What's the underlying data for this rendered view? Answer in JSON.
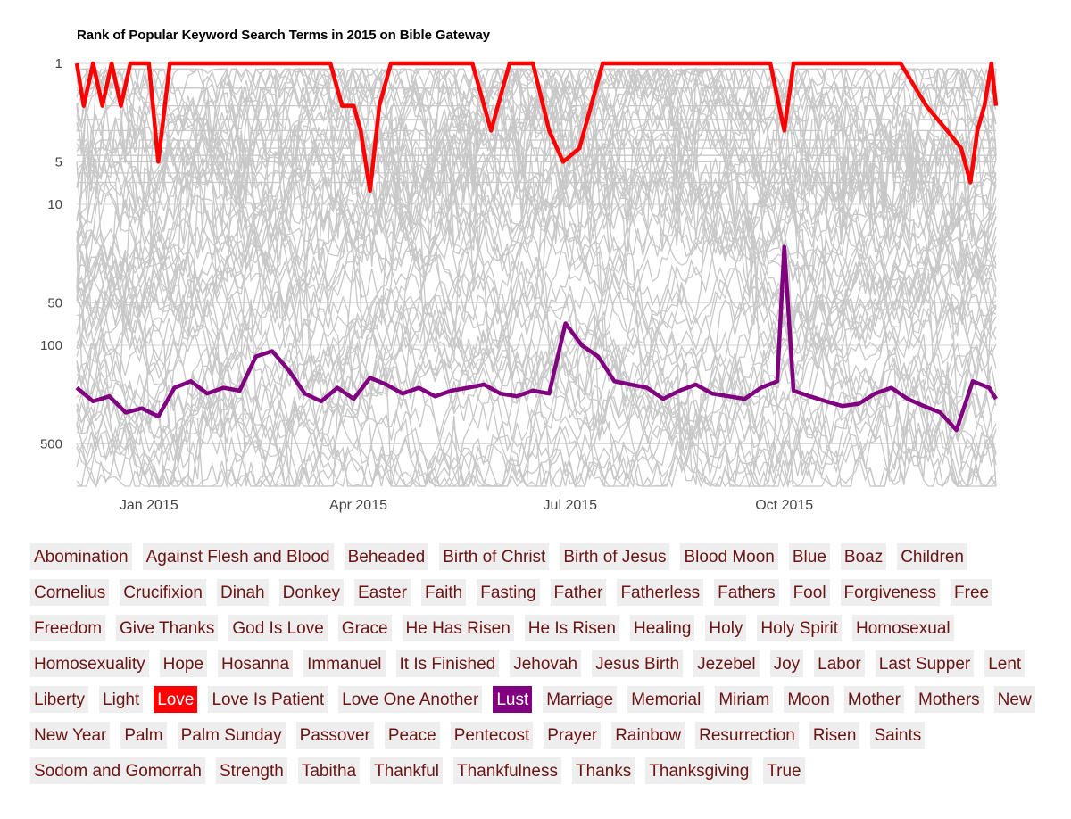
{
  "chart_data": {
    "type": "line",
    "title": "Rank of Popular Keyword Search Terms in 2015 on Bible Gateway",
    "y_scale": "log",
    "y_reversed": true,
    "y_ticks": [
      1,
      5,
      10,
      50,
      100,
      500
    ],
    "ylim": [
      1,
      1000
    ],
    "x_ticks": [
      "Jan 2015",
      "Apr 2015",
      "Jul 2015",
      "Oct 2015"
    ],
    "xlim": [
      "2014-12-01",
      "2015-12-31"
    ],
    "grid": true,
    "background_series_color": "#cccccc",
    "series": [
      {
        "name": "Love",
        "color": "#ff0000",
        "x": [
          "2014-12-01",
          "2014-12-04",
          "2014-12-08",
          "2014-12-12",
          "2014-12-16",
          "2014-12-20",
          "2014-12-24",
          "2014-12-28",
          "2015-01-01",
          "2015-01-05",
          "2015-01-10",
          "2015-02-01",
          "2015-03-01",
          "2015-03-20",
          "2015-03-25",
          "2015-03-30",
          "2015-04-02",
          "2015-04-06",
          "2015-04-10",
          "2015-04-15",
          "2015-05-01",
          "2015-05-20",
          "2015-05-28",
          "2015-06-05",
          "2015-06-15",
          "2015-06-22",
          "2015-06-28",
          "2015-07-05",
          "2015-07-15",
          "2015-08-01",
          "2015-09-01",
          "2015-09-25",
          "2015-10-01",
          "2015-10-05",
          "2015-10-10",
          "2015-11-01",
          "2015-11-20",
          "2015-12-01",
          "2015-12-10",
          "2015-12-16",
          "2015-12-20",
          "2015-12-23",
          "2015-12-26",
          "2015-12-29",
          "2015-12-31"
        ],
        "y": [
          1,
          2,
          1,
          2,
          1,
          2,
          1,
          1,
          1,
          5,
          1,
          1,
          1,
          1,
          2,
          2,
          3,
          8,
          2,
          1,
          1,
          1,
          3,
          1,
          1,
          3,
          5,
          4,
          1,
          1,
          1,
          1,
          3,
          1,
          1,
          1,
          1,
          2,
          3,
          4,
          7,
          3,
          2,
          1,
          2
        ]
      },
      {
        "name": "Lust",
        "color": "#800080",
        "x": [
          "2014-12-01",
          "2014-12-08",
          "2014-12-15",
          "2014-12-22",
          "2014-12-29",
          "2015-01-05",
          "2015-01-12",
          "2015-01-19",
          "2015-01-26",
          "2015-02-02",
          "2015-02-09",
          "2015-02-16",
          "2015-02-23",
          "2015-03-02",
          "2015-03-09",
          "2015-03-16",
          "2015-03-23",
          "2015-03-30",
          "2015-04-06",
          "2015-04-13",
          "2015-04-20",
          "2015-04-27",
          "2015-05-04",
          "2015-05-11",
          "2015-05-18",
          "2015-05-25",
          "2015-06-01",
          "2015-06-08",
          "2015-06-15",
          "2015-06-22",
          "2015-06-29",
          "2015-07-06",
          "2015-07-13",
          "2015-07-20",
          "2015-07-27",
          "2015-08-03",
          "2015-08-10",
          "2015-08-17",
          "2015-08-24",
          "2015-08-31",
          "2015-09-07",
          "2015-09-14",
          "2015-09-21",
          "2015-09-28",
          "2015-10-01",
          "2015-10-05",
          "2015-10-12",
          "2015-10-19",
          "2015-10-26",
          "2015-11-02",
          "2015-11-09",
          "2015-11-16",
          "2015-11-23",
          "2015-11-30",
          "2015-12-07",
          "2015-12-14",
          "2015-12-21",
          "2015-12-28",
          "2015-12-31"
        ],
        "y": [
          200,
          250,
          230,
          300,
          280,
          320,
          200,
          180,
          220,
          200,
          210,
          120,
          110,
          150,
          220,
          250,
          200,
          240,
          170,
          190,
          220,
          200,
          230,
          210,
          200,
          190,
          220,
          230,
          210,
          220,
          70,
          100,
          120,
          180,
          190,
          200,
          240,
          210,
          190,
          220,
          230,
          240,
          200,
          180,
          20,
          210,
          230,
          250,
          270,
          260,
          220,
          200,
          240,
          270,
          300,
          400,
          180,
          200,
          240
        ]
      }
    ]
  },
  "tags": {
    "items": [
      "Abomination",
      "Against Flesh and Blood",
      "Beheaded",
      "Birth of Christ",
      "Birth of Jesus",
      "Blood Moon",
      "Blue",
      "Boaz",
      "Children",
      "Cornelius",
      "Crucifixion",
      "Dinah",
      "Donkey",
      "Easter",
      "Faith",
      "Fasting",
      "Father",
      "Fatherless",
      "Fathers",
      "Fool",
      "Forgiveness",
      "Free",
      "Freedom",
      "Give Thanks",
      "God Is Love",
      "Grace",
      "He Has Risen",
      "He Is Risen",
      "Healing",
      "Holy",
      "Holy Spirit",
      "Homosexual",
      "Homosexuality",
      "Hope",
      "Hosanna",
      "Immanuel",
      "It Is Finished",
      "Jehovah",
      "Jesus Birth",
      "Jezebel",
      "Joy",
      "Labor",
      "Last Supper",
      "Lent",
      "Liberty",
      "Light",
      "Love",
      "Love Is Patient",
      "Love One Another",
      "Lust",
      "Marriage",
      "Memorial",
      "Miriam",
      "Moon",
      "Mother",
      "Mothers",
      "New",
      "New Year",
      "Palm",
      "Palm Sunday",
      "Passover",
      "Peace",
      "Pentecost",
      "Prayer",
      "Rainbow",
      "Resurrection",
      "Risen",
      "Saints",
      "Sodom and Gomorrah",
      "Strength",
      "Tabitha",
      "Thankful",
      "Thankfulness",
      "Thanks",
      "Thanksgiving",
      "True"
    ],
    "selected": {
      "Love": "#ff0000",
      "Lust": "#800080"
    }
  }
}
